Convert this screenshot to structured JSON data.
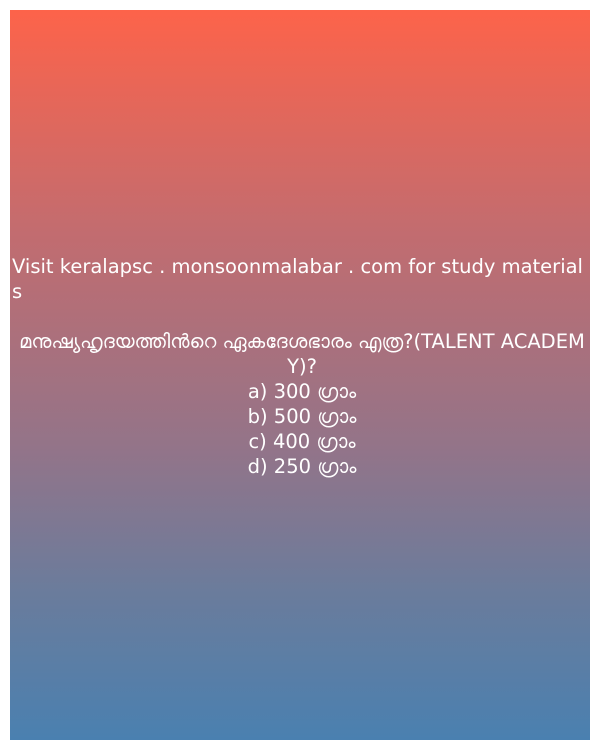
{
  "site_note": "Visit keralapsc . monsoonmalabar . com for study materials",
  "question": "മനുഷ്യഹൃദയത്തിൻറെ ഏകദേശഭാരം എത്ര?(TALENT ACADEMY)?",
  "options": [
    "a) 300 ഗ്രാം",
    "b) 500 ഗ്രാം",
    "c) 400 ഗ്രാം",
    "d) 250 ഗ്രാം"
  ],
  "colors": {
    "gradient_top": "#fd634a",
    "gradient_bottom": "#4a80b0",
    "text": "#ffffff"
  }
}
